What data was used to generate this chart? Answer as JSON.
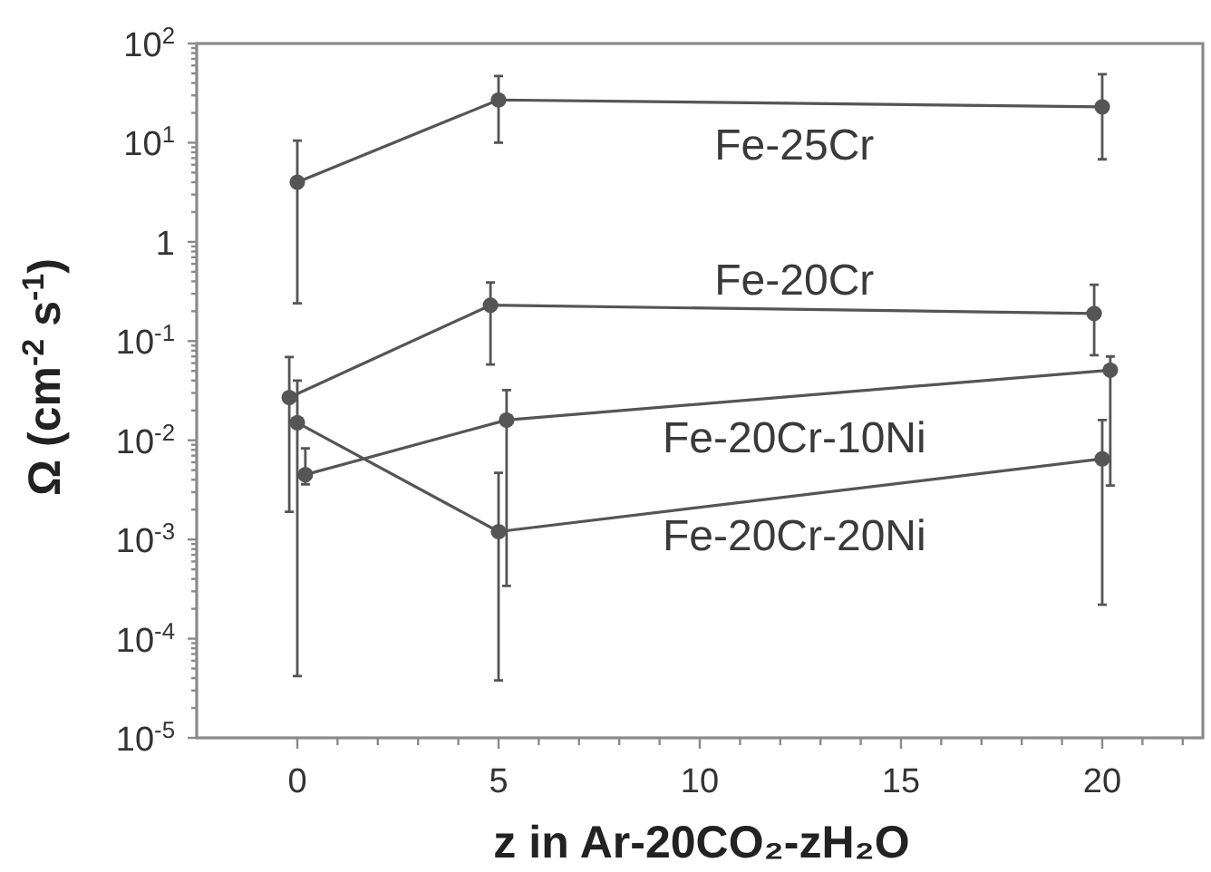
{
  "chart_data": {
    "type": "line",
    "xlabel": "z in Ar-20CO₂-zH₂O",
    "ylabel": "Ω (cm$^{-2}$ s$^{-1}$)",
    "xlim": [
      -2.5,
      22.5
    ],
    "xticks": [
      0,
      {
        "value": 1,
        "label": null
      },
      {
        "value": 2,
        "label": null
      },
      {
        "value": 3,
        "label": null
      },
      {
        "value": 4,
        "label": null
      },
      5,
      {
        "value": 6,
        "label": null
      },
      {
        "value": 7,
        "label": null
      },
      {
        "value": 8,
        "label": null
      },
      {
        "value": 9,
        "label": null
      },
      10,
      {
        "value": 11,
        "label": null
      },
      {
        "value": 12,
        "label": null
      },
      {
        "value": 13,
        "label": null
      },
      {
        "value": 14,
        "label": null
      },
      15,
      {
        "value": 16,
        "label": null
      },
      {
        "value": 17,
        "label": null
      },
      {
        "value": 18,
        "label": null
      },
      {
        "value": 19,
        "label": null
      },
      20,
      {
        "value": 21,
        "label": null
      },
      {
        "value": 22,
        "label": null
      }
    ],
    "ylim": [
      1e-05,
      100
    ],
    "yticks": [
      {
        "value": 100,
        "label": "10$^{2}$"
      },
      {
        "value": 10,
        "label": "10$^{1}$"
      },
      1,
      {
        "value": 0.1,
        "label": "10$^{-1}$"
      },
      {
        "value": 0.01,
        "label": "10$^{-2}$"
      },
      {
        "value": 0.001,
        "label": "10$^{-3}$"
      },
      {
        "value": 0.0001,
        "label": "10$^{-4}$"
      },
      {
        "value": 1e-05,
        "label": "10$^{-5}$"
      },
      {
        "value": 2e-05,
        "label": null
      },
      {
        "value": 3e-05,
        "label": null
      },
      {
        "value": 4e-05,
        "label": null
      },
      {
        "value": 5e-05,
        "label": null
      },
      {
        "value": 6e-05,
        "label": null
      },
      {
        "value": 7e-05,
        "label": null
      },
      {
        "value": 8e-05,
        "label": null
      },
      {
        "value": 9e-05,
        "label": null
      },
      {
        "value": 0.0002,
        "label": null
      },
      {
        "value": 0.0003,
        "label": null
      },
      {
        "value": 0.0004,
        "label": null
      },
      {
        "value": 0.0005,
        "label": null
      },
      {
        "value": 0.0006,
        "label": null
      },
      {
        "value": 0.0007,
        "label": null
      },
      {
        "value": 0.0008,
        "label": null
      },
      {
        "value": 0.0009,
        "label": null
      },
      {
        "value": 0.002,
        "label": null
      },
      {
        "value": 0.003,
        "label": null
      },
      {
        "value": 0.004,
        "label": null
      },
      {
        "value": 0.005,
        "label": null
      },
      {
        "value": 0.006,
        "label": null
      },
      {
        "value": 0.007,
        "label": null
      },
      {
        "value": 0.008,
        "label": null
      },
      {
        "value": 0.009,
        "label": null
      },
      {
        "value": 0.02,
        "label": null
      },
      {
        "value": 0.03,
        "label": null
      },
      {
        "value": 0.04,
        "label": null
      },
      {
        "value": 0.05,
        "label": null
      },
      {
        "value": 0.06,
        "label": null
      },
      {
        "value": 0.07,
        "label": null
      },
      {
        "value": 0.08,
        "label": null
      },
      {
        "value": 0.09,
        "label": null
      },
      {
        "value": 0.2,
        "label": null
      },
      {
        "value": 0.3,
        "label": null
      },
      {
        "value": 0.4,
        "label": null
      },
      {
        "value": 0.5,
        "label": null
      },
      {
        "value": 0.6,
        "label": null
      },
      {
        "value": 0.7,
        "label": null
      },
      {
        "value": 0.8,
        "label": null
      },
      {
        "value": 0.9,
        "label": null
      },
      {
        "value": 2,
        "label": null
      },
      {
        "value": 3,
        "label": null
      },
      {
        "value": 4,
        "label": null
      },
      {
        "value": 5,
        "label": null
      },
      {
        "value": 6,
        "label": null
      },
      {
        "value": 7,
        "label": null
      },
      {
        "value": 8,
        "label": null
      },
      {
        "value": 9,
        "label": null
      },
      {
        "value": 20,
        "label": null
      },
      {
        "value": 30,
        "label": null
      },
      {
        "value": 40,
        "label": null
      },
      {
        "value": 50,
        "label": null
      },
      {
        "value": 60,
        "label": null
      },
      {
        "value": 70,
        "label": null
      },
      {
        "value": 80,
        "label": null
      },
      {
        "value": 90,
        "label": null
      }
    ],
    "log": "y",
    "legend": false,
    "marker": "circle",
    "line_style": "solid",
    "series": [
      {
        "name": "Fe-25Cr",
        "color": "#555555",
        "x": [
          0,
          5,
          20
        ],
        "values": [
          4,
          27,
          23
        ],
        "errors": [
          [
            0.24,
            10.5
          ],
          [
            10,
            47
          ],
          [
            6.8,
            49
          ]
        ]
      },
      {
        "name": "Fe-20Cr",
        "color": "#555555",
        "x": [
          -0.2,
          4.8,
          19.8
        ],
        "values": [
          0.027,
          0.23,
          0.19
        ],
        "errors": [
          [
            0.0019,
            0.069
          ],
          [
            0.058,
            0.39
          ],
          [
            0.072,
            0.37
          ]
        ]
      },
      {
        "name": "Fe-20Cr-10Ni",
        "color": "#555555",
        "x": [
          0.2,
          5.2,
          20.2
        ],
        "values": [
          0.0045,
          0.016,
          0.051
        ],
        "errors": [
          [
            0.0036,
            0.0083
          ],
          [
            0.00034,
            0.032
          ],
          [
            0.0035,
            0.07
          ]
        ]
      },
      {
        "name": "Fe-20Cr-20Ni",
        "color": "#555555",
        "x": [
          0,
          5,
          20
        ],
        "values": [
          0.015,
          0.0012,
          0.0065
        ],
        "errors": [
          [
            4.2e-05,
            0.04
          ],
          [
            3.8e-05,
            0.0047
          ],
          [
            0.00022,
            0.016
          ]
        ]
      }
    ]
  }
}
